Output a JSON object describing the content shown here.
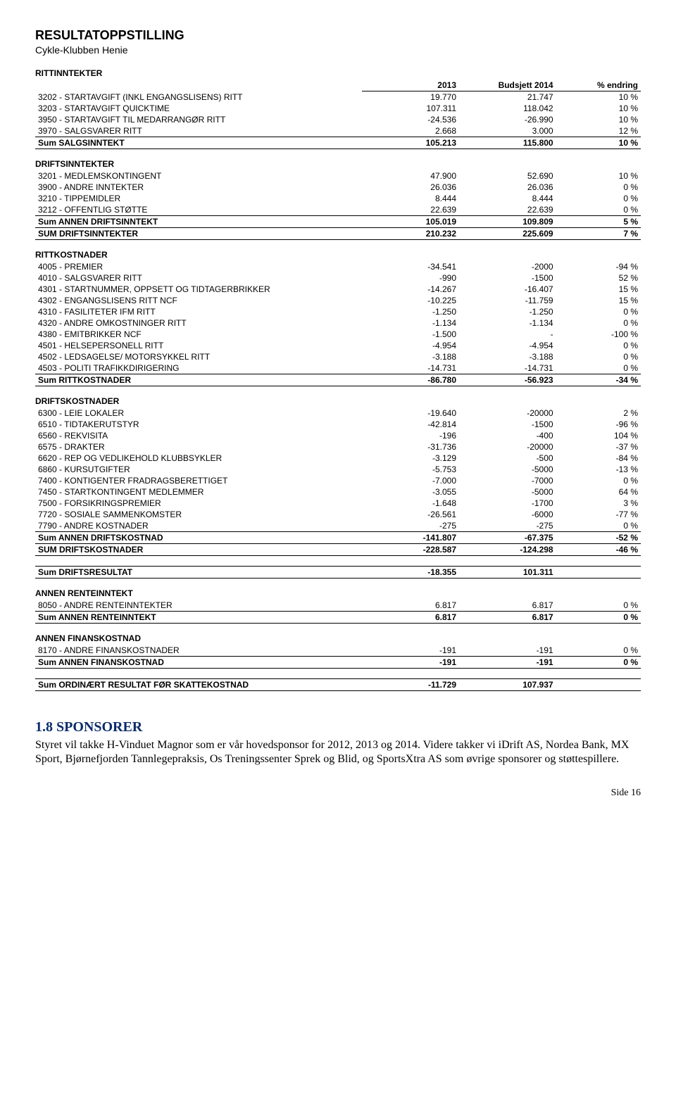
{
  "title": "RESULTATOPPSTILLING",
  "subtitle": "Cykle-Klubben Henie",
  "headers": {
    "c1": "2013",
    "c2": "Budsjett 2014",
    "c3": "% endring"
  },
  "sections": [
    {
      "label": "RITTINNTEKTER",
      "rows": [
        {
          "name": "3202 - STARTAVGIFT (INKL ENGANGSLISENS) RITT",
          "v1": "19.770",
          "v2": "21.747",
          "v3": "10 %"
        },
        {
          "name": "3203 - STARTAVGIFT QUICKTIME",
          "v1": "107.311",
          "v2": "118.042",
          "v3": "10 %"
        },
        {
          "name": "3950 - STARTAVGIFT TIL MEDARRANGØR RITT",
          "v1": "-24.536",
          "v2": "-26.990",
          "v3": "10 %"
        },
        {
          "name": "3970 - SALGSVARER RITT",
          "v1": "2.668",
          "v2": "3.000",
          "v3": "12 %"
        }
      ],
      "sums": [
        {
          "name": "Sum SALGSINNTEKT",
          "v1": "105.213",
          "v2": "115.800",
          "v3": "10 %",
          "style": "sumtotal"
        }
      ]
    },
    {
      "label": "DRIFTSINNTEKTER",
      "rows": [
        {
          "name": "3201 - MEDLEMSKONTINGENT",
          "v1": "47.900",
          "v2": "52.690",
          "v3": "10 %"
        },
        {
          "name": "3900 - ANDRE INNTEKTER",
          "v1": "26.036",
          "v2": "26.036",
          "v3": "0 %"
        },
        {
          "name": "3210 - TIPPEMIDLER",
          "v1": "8.444",
          "v2": "8.444",
          "v3": "0 %"
        },
        {
          "name": "3212 - OFFENTLIG STØTTE",
          "v1": "22.639",
          "v2": "22.639",
          "v3": "0 %"
        }
      ],
      "sums": [
        {
          "name": "Sum ANNEN DRIFTSINNTEKT",
          "v1": "105.019",
          "v2": "109.809",
          "v3": "5 %",
          "style": "sumline"
        },
        {
          "name": "SUM DRIFTSINNTEKTER",
          "v1": "210.232",
          "v2": "225.609",
          "v3": "7 %",
          "style": "sumtotal"
        }
      ]
    },
    {
      "label": "RITTKOSTNADER",
      "rows": [
        {
          "name": "4005 - PREMIER",
          "v1": "-34.541",
          "v2": "-2000",
          "v3": "-94 %"
        },
        {
          "name": "4010 - SALGSVARER RITT",
          "v1": "-990",
          "v2": "-1500",
          "v3": "52 %"
        },
        {
          "name": "4301 - STARTNUMMER, OPPSETT OG TIDTAGERBRIKKER",
          "v1": "-14.267",
          "v2": "-16.407",
          "v3": "15 %"
        },
        {
          "name": "4302 - ENGANGSLISENS RITT NCF",
          "v1": "-10.225",
          "v2": "-11.759",
          "v3": "15 %"
        },
        {
          "name": "4310 - FASILITETER IFM RITT",
          "v1": "-1.250",
          "v2": "-1.250",
          "v3": "0 %"
        },
        {
          "name": "4320 - ANDRE OMKOSTNINGER RITT",
          "v1": "-1.134",
          "v2": "-1.134",
          "v3": "0 %"
        },
        {
          "name": "4380 - EMITBRIKKER NCF",
          "v1": "-1.500",
          "v2": "-",
          "v3": "-100 %"
        },
        {
          "name": "4501 - HELSEPERSONELL RITT",
          "v1": "-4.954",
          "v2": "-4.954",
          "v3": "0 %"
        },
        {
          "name": "4502 - LEDSAGELSE/ MOTORSYKKEL RITT",
          "v1": "-3.188",
          "v2": "-3.188",
          "v3": "0 %"
        },
        {
          "name": "4503 - POLITI TRAFIKKDIRIGERING",
          "v1": "-14.731",
          "v2": "-14.731",
          "v3": "0 %"
        }
      ],
      "sums": [
        {
          "name": "Sum RITTKOSTNADER",
          "v1": "-86.780",
          "v2": "-56.923",
          "v3": "-34 %",
          "style": "sumtotal"
        }
      ]
    },
    {
      "label": "DRIFTSKOSTNADER",
      "rows": [
        {
          "name": "6300 - LEIE LOKALER",
          "v1": "-19.640",
          "v2": "-20000",
          "v3": "2 %"
        },
        {
          "name": "6510 - TIDTAKERUTSTYR",
          "v1": "-42.814",
          "v2": "-1500",
          "v3": "-96 %"
        },
        {
          "name": "6560 - REKVISITA",
          "v1": "-196",
          "v2": "-400",
          "v3": "104 %"
        },
        {
          "name": "6575 - DRAKTER",
          "v1": "-31.736",
          "v2": "-20000",
          "v3": "-37 %"
        },
        {
          "name": "6620 - REP OG VEDLIKEHOLD KLUBBSYKLER",
          "v1": "-3.129",
          "v2": "-500",
          "v3": "-84 %"
        },
        {
          "name": "6860 - KURSUTGIFTER",
          "v1": "-5.753",
          "v2": "-5000",
          "v3": "-13 %"
        },
        {
          "name": "7400 - KONTIGENTER FRADRAGSBERETTIGET",
          "v1": "-7.000",
          "v2": "-7000",
          "v3": "0 %"
        },
        {
          "name": "7450 - STARTKONTINGENT MEDLEMMER",
          "v1": "-3.055",
          "v2": "-5000",
          "v3": "64 %"
        },
        {
          "name": "7500 - FORSIKRINGSPREMIER",
          "v1": "-1.648",
          "v2": "-1700",
          "v3": "3 %"
        },
        {
          "name": "7720 - SOSIALE SAMMENKOMSTER",
          "v1": "-26.561",
          "v2": "-6000",
          "v3": "-77 %"
        },
        {
          "name": "7790 - ANDRE KOSTNADER",
          "v1": "-275",
          "v2": "-275",
          "v3": "0 %"
        }
      ],
      "sums": [
        {
          "name": "Sum ANNEN DRIFTSKOSTNAD",
          "v1": "-141.807",
          "v2": "-67.375",
          "v3": "-52 %",
          "style": "sumline"
        },
        {
          "name": "SUM DRIFTSKOSTNADER",
          "v1": "-228.587",
          "v2": "-124.298",
          "v3": "-46 %",
          "style": "sumtotal"
        }
      ]
    },
    {
      "label": "",
      "rows": [],
      "sums": [
        {
          "name": "Sum DRIFTSRESULTAT",
          "v1": "-18.355",
          "v2": "101.311",
          "v3": "",
          "style": "sumtotal"
        }
      ]
    },
    {
      "label": "ANNEN RENTEINNTEKT",
      "rows": [
        {
          "name": "8050 - ANDRE RENTEINNTEKTER",
          "v1": "6.817",
          "v2": "6.817",
          "v3": "0 %"
        }
      ],
      "sums": [
        {
          "name": "Sum ANNEN RENTEINNTEKT",
          "v1": "6.817",
          "v2": "6.817",
          "v3": "0 %",
          "style": "sumtotal"
        }
      ]
    },
    {
      "label": "ANNEN FINANSKOSTNAD",
      "rows": [
        {
          "name": "8170 - ANDRE FINANSKOSTNADER",
          "v1": "-191",
          "v2": "-191",
          "v3": "0 %"
        }
      ],
      "sums": [
        {
          "name": "Sum ANNEN FINANSKOSTNAD",
          "v1": "-191",
          "v2": "-191",
          "v3": "0 %",
          "style": "sumtotal"
        }
      ]
    },
    {
      "label": "",
      "rows": [],
      "sums": [
        {
          "name": "Sum ORDINÆRT RESULTAT FØR SKATTEKOSTNAD",
          "v1": "-11.729",
          "v2": "107.937",
          "v3": "",
          "style": "sumtotal"
        }
      ]
    }
  ],
  "sponsor": {
    "heading": "1.8 SPONSORER",
    "body": "Styret vil takke H-Vinduet Magnor som er vår hovedsponsor for 2012, 2013 og 2014. Videre takker vi iDrift AS, Nordea Bank, MX Sport, Bjørnefjorden Tannlegepraksis, Os Treningssenter Sprek og Blid, og SportsXtra AS som øvrige sponsorer og støttespillere."
  },
  "page": "Side 16"
}
